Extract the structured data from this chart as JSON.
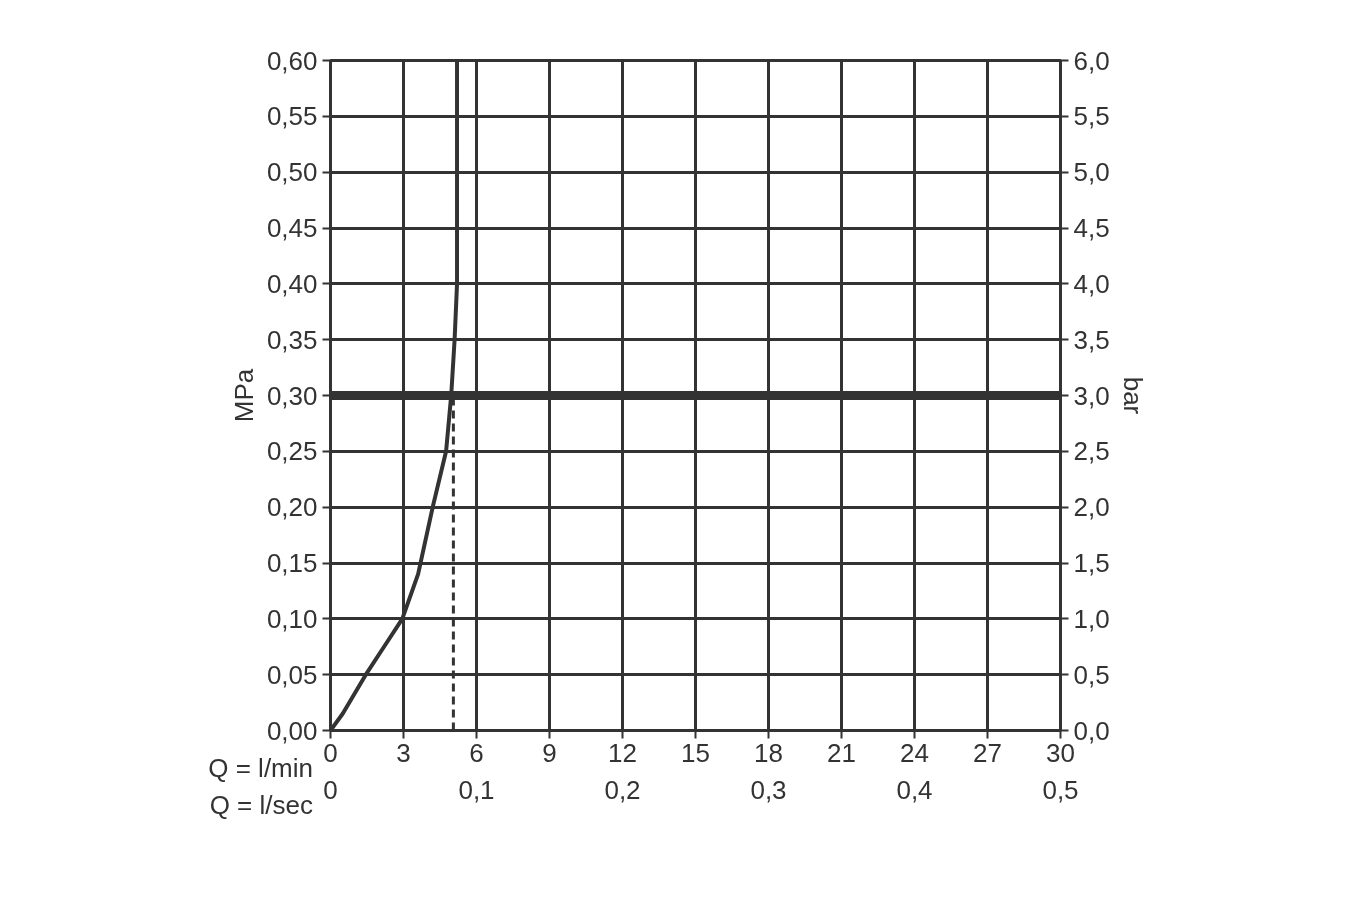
{
  "chart_data": {
    "type": "line",
    "xlabel": "Q = l/min",
    "x2label": "Q = l/sec",
    "ylabel": "MPa",
    "y2label": "bar",
    "xlim": [
      0,
      30
    ],
    "xticks": [
      0,
      3,
      6,
      9,
      12,
      15,
      18,
      21,
      24,
      27,
      30
    ],
    "x2lim": [
      0,
      0.5
    ],
    "x2ticks": [
      {
        "value": 0,
        "label": "0"
      },
      {
        "value": 0.1,
        "label": "0,1"
      },
      {
        "value": 0.2,
        "label": "0,2"
      },
      {
        "value": 0.3,
        "label": "0,3"
      },
      {
        "value": 0.4,
        "label": "0,4"
      },
      {
        "value": 0.5,
        "label": "0,5"
      }
    ],
    "ylim": [
      0,
      0.6
    ],
    "yticks": [
      {
        "value": 0,
        "label": "0,00"
      },
      {
        "value": 0.05,
        "label": "0,05"
      },
      {
        "value": 0.1,
        "label": "0,10"
      },
      {
        "value": 0.15,
        "label": "0,15"
      },
      {
        "value": 0.2,
        "label": "0,20"
      },
      {
        "value": 0.25,
        "label": "0,25"
      },
      {
        "value": 0.3,
        "label": "0,30"
      },
      {
        "value": 0.35,
        "label": "0,35"
      },
      {
        "value": 0.4,
        "label": "0,40"
      },
      {
        "value": 0.45,
        "label": "0,45"
      },
      {
        "value": 0.5,
        "label": "0,50"
      },
      {
        "value": 0.55,
        "label": "0,55"
      },
      {
        "value": 0.6,
        "label": "0,60"
      }
    ],
    "y2lim": [
      0,
      6
    ],
    "y2ticks": [
      {
        "value": 0,
        "label": "0,0"
      },
      {
        "value": 0.5,
        "label": "0,5"
      },
      {
        "value": 1,
        "label": "1,0"
      },
      {
        "value": 1.5,
        "label": "1,5"
      },
      {
        "value": 2,
        "label": "2,0"
      },
      {
        "value": 2.5,
        "label": "2,5"
      },
      {
        "value": 3,
        "label": "3,0"
      },
      {
        "value": 3.5,
        "label": "3,5"
      },
      {
        "value": 4,
        "label": "4,0"
      },
      {
        "value": 4.5,
        "label": "4,5"
      },
      {
        "value": 5,
        "label": "5,0"
      },
      {
        "value": 5.5,
        "label": "5,5"
      },
      {
        "value": 6,
        "label": "6,0"
      }
    ],
    "grid": true,
    "series": [
      {
        "color": "#333333",
        "x": [
          0,
          0.5,
          1.45,
          2.2,
          2.95,
          3.6,
          4.2,
          4.75,
          4.96,
          5.1,
          5.2,
          5.2,
          5.2
        ],
        "values": [
          0,
          0.015,
          0.05,
          0.075,
          0.1,
          0.14,
          0.2,
          0.25,
          0.3,
          0.35,
          0.4,
          0.5,
          0.6
        ]
      }
    ],
    "ref_lines": [
      {
        "axis": "y",
        "value": 0.3,
        "color": "#333333",
        "line_style": "solid"
      },
      {
        "axis": "x",
        "value": 5.05,
        "color": "#333333",
        "line_style": "dashed"
      }
    ]
  }
}
